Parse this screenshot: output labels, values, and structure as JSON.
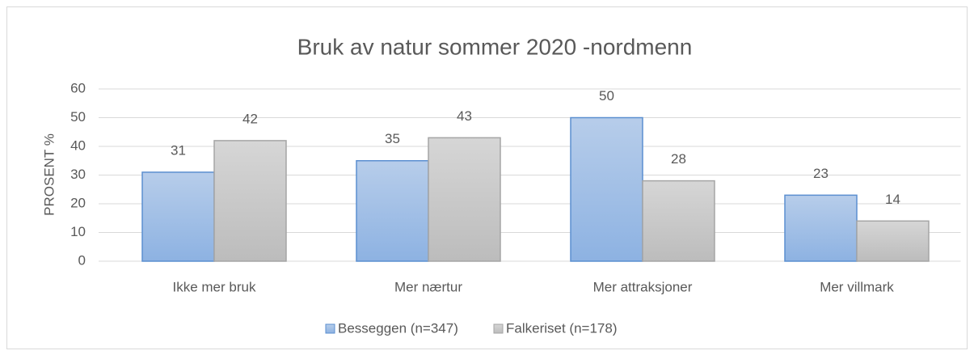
{
  "chart_data": {
    "type": "bar",
    "title": "Bruk av natur sommer 2020 -nordmenn",
    "y_label": "PROSENT %",
    "categories": [
      "Ikke mer bruk",
      "Mer nærtur",
      "Mer attraksjoner",
      "Mer villmark"
    ],
    "series": [
      {
        "name": "Besseggen (n=347)",
        "color": "#9dbde6",
        "values": [
          31,
          35,
          50,
          23
        ]
      },
      {
        "name": "Falkeriset (n=178)",
        "color": "#c8c8c8",
        "values": [
          42,
          43,
          28,
          14
        ]
      }
    ],
    "ylim": [
      0,
      60
    ],
    "yticks": [
      0,
      10,
      20,
      30,
      40,
      50,
      60
    ],
    "grid": true,
    "legend": "bottom"
  }
}
